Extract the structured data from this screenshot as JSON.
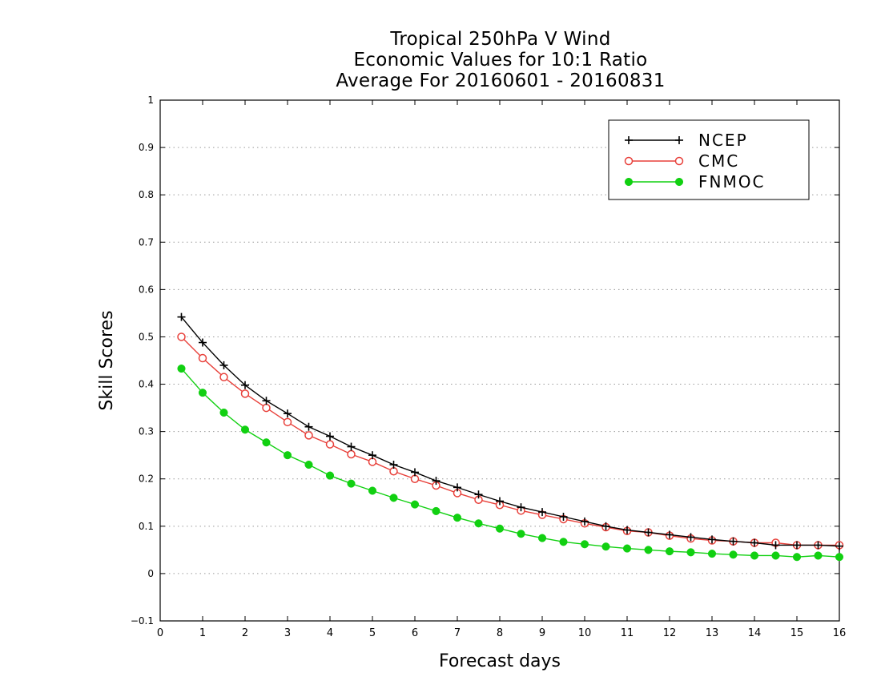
{
  "chart_data": {
    "type": "line",
    "title": [
      "Tropical 250hPa V Wind",
      "Economic Values for 10:1 Ratio",
      "Average For 20160601 - 20160831"
    ],
    "xlabel": "Forecast days",
    "ylabel": "Skill Scores",
    "xlim": [
      0,
      16
    ],
    "ylim": [
      -0.1,
      1
    ],
    "xticks": [
      "0",
      "1",
      "2",
      "3",
      "4",
      "5",
      "6",
      "7",
      "8",
      "9",
      "10",
      "11",
      "12",
      "13",
      "14",
      "15",
      "16"
    ],
    "yticks": [
      "−0.1",
      "0",
      "0.1",
      "0.2",
      "0.3",
      "0.4",
      "0.5",
      "0.6",
      "0.7",
      "0.8",
      "0.9",
      "1"
    ],
    "grid": true,
    "legend_position": "top-right",
    "x": [
      0.5,
      1,
      1.5,
      2,
      2.5,
      3,
      3.5,
      4,
      4.5,
      5,
      5.5,
      6,
      6.5,
      7,
      7.5,
      8,
      8.5,
      9,
      9.5,
      10,
      10.5,
      11,
      11.5,
      12,
      12.5,
      13,
      13.5,
      14,
      14.5,
      15,
      15.5,
      16
    ],
    "series": [
      {
        "name": "NCEP",
        "color": "#000000",
        "marker": "plus",
        "values": [
          0.542,
          0.488,
          0.44,
          0.398,
          0.365,
          0.338,
          0.31,
          0.29,
          0.268,
          0.25,
          0.23,
          0.214,
          0.196,
          0.182,
          0.167,
          0.153,
          0.14,
          0.13,
          0.12,
          0.11,
          0.1,
          0.092,
          0.087,
          0.082,
          0.077,
          0.072,
          0.068,
          0.065,
          0.06,
          0.06,
          0.06,
          0.058
        ]
      },
      {
        "name": "CMC",
        "color": "#e8403a",
        "marker": "open-circle",
        "values": [
          0.5,
          0.455,
          0.415,
          0.38,
          0.35,
          0.32,
          0.292,
          0.273,
          0.252,
          0.236,
          0.216,
          0.2,
          0.186,
          0.17,
          0.156,
          0.145,
          0.133,
          0.124,
          0.115,
          0.106,
          0.098,
          0.09,
          0.087,
          0.08,
          0.074,
          0.07,
          0.068,
          0.065,
          0.065,
          0.06,
          0.06,
          0.06
        ]
      },
      {
        "name": "FNMOC",
        "color": "#11d011",
        "marker": "filled-circle",
        "values": [
          0.433,
          0.382,
          0.34,
          0.304,
          0.277,
          0.25,
          0.23,
          0.207,
          0.19,
          0.175,
          0.16,
          0.146,
          0.132,
          0.118,
          0.106,
          0.095,
          0.084,
          0.075,
          0.067,
          0.062,
          0.057,
          0.053,
          0.05,
          0.047,
          0.045,
          0.042,
          0.04,
          0.038,
          0.038,
          0.035,
          0.038,
          0.035
        ]
      }
    ]
  }
}
